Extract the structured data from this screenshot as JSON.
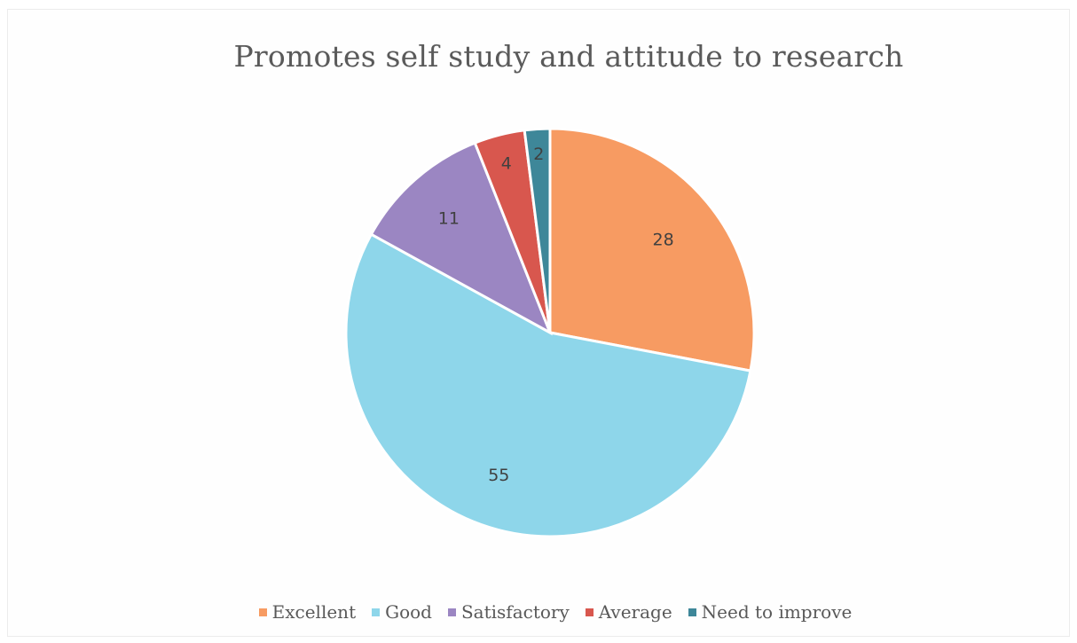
{
  "chart_data": {
    "type": "pie",
    "title": "Promotes self study and attitude to research",
    "categories": [
      "Excellent",
      "Good",
      "Satisfactory",
      "Average",
      "Need to improve"
    ],
    "values": [
      28,
      55,
      11,
      4,
      2
    ],
    "data_labels": [
      "28",
      "55",
      "11",
      "4",
      "2"
    ],
    "colors": [
      "#F79B62",
      "#8ED6EA",
      "#9B86C2",
      "#D8574E",
      "#3E8799"
    ],
    "legend": "bottom"
  }
}
